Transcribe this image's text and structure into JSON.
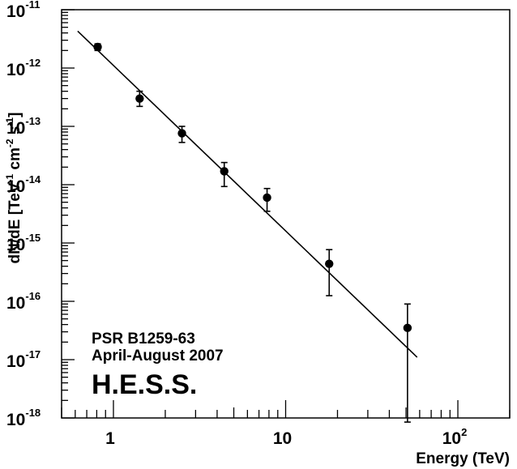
{
  "chart_data": {
    "type": "scatter",
    "title": "",
    "xlabel": "Energy (TeV)",
    "ylabel": {
      "base": "dN/dE [TeV",
      "sup1": "-1",
      "mid": " cm",
      "sup2": "-2",
      "mid2": " s",
      "sup3": "-1",
      "end": "]"
    },
    "x_scale": "log",
    "y_scale": "log",
    "xlim": [
      0.5,
      200
    ],
    "ylim": [
      1e-18,
      1e-11
    ],
    "grid": false,
    "x_ticks": [
      {
        "value": 1,
        "base": "1",
        "exp": ""
      },
      {
        "value": 10,
        "base": "10",
        "exp": ""
      },
      {
        "value": 100,
        "base": "10",
        "exp": "2"
      }
    ],
    "y_ticks": [
      {
        "value": 1e-18,
        "base": "10",
        "exp": "-18"
      },
      {
        "value": 1e-17,
        "base": "10",
        "exp": "-17"
      },
      {
        "value": 1e-16,
        "base": "10",
        "exp": "-16"
      },
      {
        "value": 1e-15,
        "base": "10",
        "exp": "-15"
      },
      {
        "value": 1e-14,
        "base": "10",
        "exp": "-14"
      },
      {
        "value": 1e-13,
        "base": "10",
        "exp": "-13"
      },
      {
        "value": 1e-12,
        "base": "10",
        "exp": "-12"
      },
      {
        "value": 1e-11,
        "base": "10",
        "exp": "-11"
      }
    ],
    "points": [
      {
        "x": 0.81,
        "y": 2.3e-12,
        "ylo": 2e-12,
        "yhi": 2.6e-12
      },
      {
        "x": 1.42,
        "y": 3e-13,
        "ylo": 2.2e-13,
        "yhi": 4e-13
      },
      {
        "x": 2.5,
        "y": 7.6e-14,
        "ylo": 5.3e-14,
        "yhi": 1e-13
      },
      {
        "x": 4.4,
        "y": 1.7e-14,
        "ylo": 9.3e-15,
        "yhi": 2.4e-14
      },
      {
        "x": 7.8,
        "y": 6e-15,
        "ylo": 3.5e-15,
        "yhi": 8.6e-15
      },
      {
        "x": 17.9,
        "y": 4.4e-16,
        "ylo": 1.25e-16,
        "yhi": 7.7e-16
      },
      {
        "x": 51,
        "y": 3.5e-17,
        "ylo": 8.5e-19,
        "yhi": 9e-17
      }
    ],
    "fit_line": {
      "x": [
        0.62,
        58
      ],
      "y": [
        4.3e-12,
        1.1e-17
      ]
    },
    "annotations": {
      "line1": "PSR B1259-63",
      "line2": "April-August 2007",
      "line3": "H.E.S.S."
    }
  }
}
